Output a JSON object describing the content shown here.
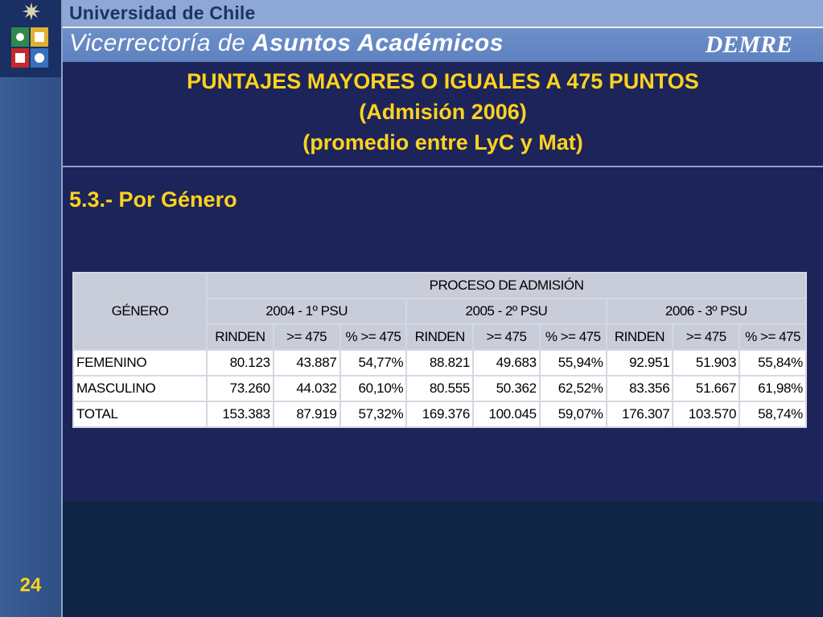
{
  "header": {
    "university": "Universidad de Chile",
    "vicerrectoria_prefix": "Vicerrectoría de",
    "vicerrectoria_main": "Asuntos Académicos",
    "demre": "DEMRE"
  },
  "title": {
    "line1": "PUNTAJES MAYORES O IGUALES A 475 PUNTOS",
    "line2": "(Admisión 2006)",
    "line3": "(promedio entre LyC y Mat)"
  },
  "subtitle": "5.3.- Por Género",
  "table": {
    "genero_header": "GÉNERO",
    "proceso_header": "PROCESO DE ADMISIÓN",
    "years": [
      "2004 - 1º PSU",
      "2005 - 2º PSU",
      "2006 - 3º PSU"
    ],
    "subcols": [
      "RINDEN",
      ">= 475",
      "% >= 475"
    ],
    "rows": [
      {
        "label": "FEMENINO",
        "values": [
          "80.123",
          "43.887",
          "54,77%",
          "88.821",
          "49.683",
          "55,94%",
          "92.951",
          "51.903",
          "55,84%"
        ]
      },
      {
        "label": "MASCULINO",
        "values": [
          "73.260",
          "44.032",
          "60,10%",
          "80.555",
          "50.362",
          "62,52%",
          "83.356",
          "51.667",
          "61,98%"
        ]
      },
      {
        "label": "TOTAL",
        "values": [
          "153.383",
          "87.919",
          "57,32%",
          "169.376",
          "100.045",
          "59,07%",
          "176.307",
          "103.570",
          "58,74%"
        ]
      }
    ]
  },
  "page_number": "24",
  "colors": {
    "background": "#1c2459",
    "title_yellow": "#ffd21e",
    "header_blue": "#6c8fc9",
    "sidebar_blue": "#3b5e95"
  }
}
